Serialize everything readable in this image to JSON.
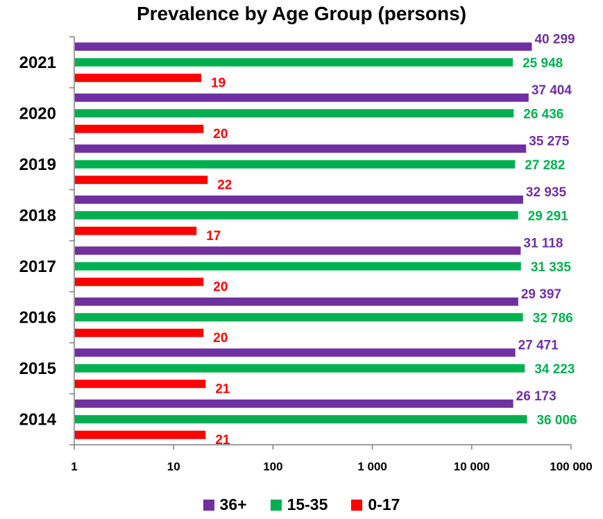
{
  "chart_data": {
    "type": "bar",
    "orientation": "horizontal",
    "title": "Prevalence by Age Group (persons)",
    "xscale": "log",
    "xlim": [
      1,
      100000
    ],
    "xticks": [
      1,
      10,
      100,
      1000,
      10000,
      100000
    ],
    "xtick_labels": [
      "1",
      "10",
      "100",
      "1 000",
      "10 000",
      "100 000"
    ],
    "categories": [
      "2021",
      "2020",
      "2019",
      "2018",
      "2017",
      "2016",
      "2015",
      "2014"
    ],
    "series": [
      {
        "name": "36+",
        "color": "#7030A0",
        "values": [
          40299,
          37404,
          35275,
          32935,
          31118,
          29397,
          27471,
          26173
        ],
        "labels": [
          "40 299",
          "37 404",
          "35 275",
          "32 935",
          "31 118",
          "29 397",
          "27 471",
          "26 173"
        ]
      },
      {
        "name": "15-35",
        "color": "#00B050",
        "values": [
          25948,
          26436,
          27282,
          29291,
          31335,
          32786,
          34223,
          36006
        ],
        "labels": [
          "25 948",
          "26 436",
          "27 282",
          "29 291",
          "31 335",
          "32 786",
          "34 223",
          "36 006"
        ]
      },
      {
        "name": "0-17",
        "color": "#FF0000",
        "values": [
          19,
          20,
          22,
          17,
          20,
          20,
          21,
          21
        ],
        "labels": [
          "19",
          "20",
          "22",
          "17",
          "20",
          "20",
          "21",
          "21"
        ]
      }
    ],
    "grid": false,
    "legend_position": "bottom"
  }
}
